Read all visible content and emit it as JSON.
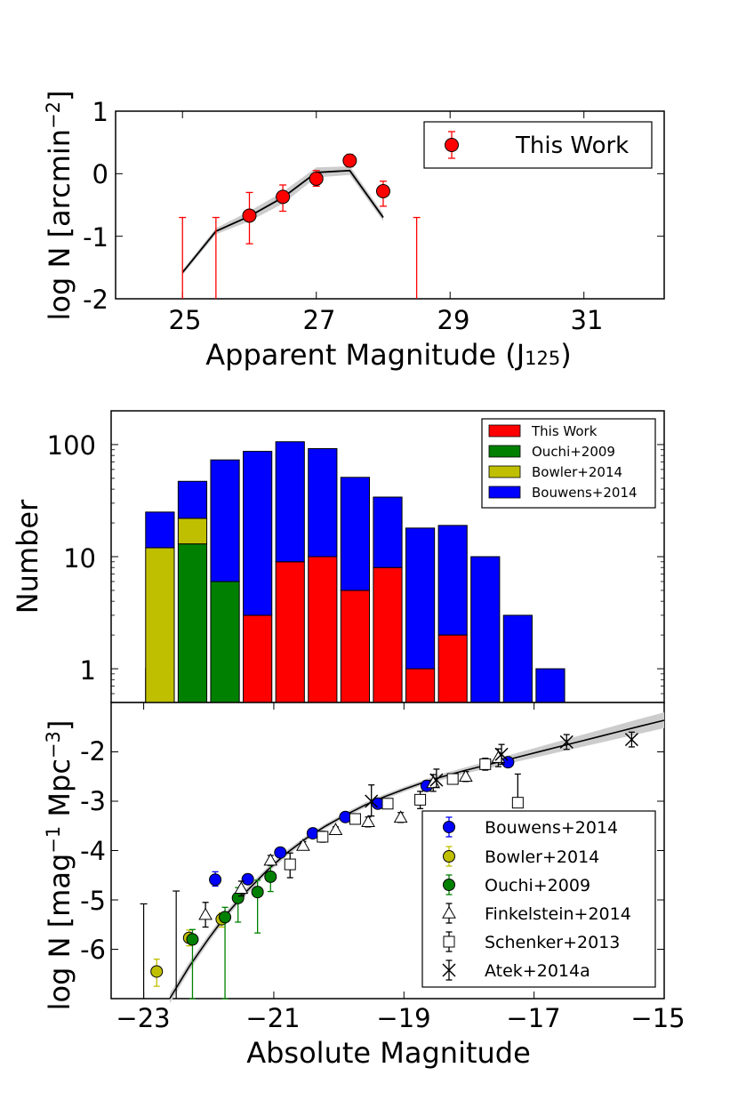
{
  "chart_data": [
    {
      "id": "panel_top",
      "type": "scatter",
      "xlabel": "Apparent Magnitude (J",
      "xlabel_sub": "125",
      "xlabel_close": ")",
      "ylabel": "log N [arcmin",
      "ylabel_sup": "−2",
      "ylabel_close": "]",
      "xlim": [
        24,
        32.2
      ],
      "ylim": [
        -2,
        1
      ],
      "xticks": [
        25,
        27,
        29,
        31
      ],
      "xtick_labels": [
        "25",
        "27",
        "29",
        "31"
      ],
      "yticks": [
        1,
        0,
        -1,
        -2
      ],
      "ytick_labels": [
        "1",
        "0",
        "-1",
        "-2"
      ],
      "legend": {
        "location": "upper right",
        "entries": [
          "This Work"
        ]
      },
      "series": [
        {
          "name": "This Work",
          "color": "#ff0000",
          "marker": "circle",
          "points": [
            {
              "x": 26.0,
              "y": -0.67,
              "ylo": -1.12,
              "yhi": -0.3
            },
            {
              "x": 26.5,
              "y": -0.37,
              "ylo": -0.6,
              "yhi": -0.18
            },
            {
              "x": 27.0,
              "y": -0.08,
              "ylo": -0.2,
              "yhi": 0.05
            },
            {
              "x": 27.5,
              "y": 0.21,
              "ylo": 0.11,
              "yhi": 0.31
            },
            {
              "x": 28.0,
              "y": -0.28,
              "ylo": -0.52,
              "yhi": -0.12
            }
          ],
          "upper_limits": [
            {
              "x": 25.0,
              "ylo": -2.0,
              "yhi": -0.7
            },
            {
              "x": 25.5,
              "ylo": -2.0,
              "yhi": -0.7
            },
            {
              "x": 28.5,
              "ylo": -2.0,
              "yhi": -0.7
            }
          ]
        },
        {
          "name": "model",
          "type": "line",
          "color": "#000000",
          "x": [
            25.0,
            25.5,
            26.0,
            26.5,
            27.0,
            27.5,
            28.0
          ],
          "y": [
            -1.58,
            -0.92,
            -0.68,
            -0.38,
            0.02,
            0.05,
            -0.7
          ],
          "band_lo": [
            -1.62,
            -0.97,
            -0.76,
            -0.48,
            -0.06,
            -0.02,
            -0.76
          ],
          "band_hi": [
            -1.54,
            -0.87,
            -0.6,
            -0.29,
            0.1,
            0.12,
            -0.64
          ]
        }
      ]
    },
    {
      "id": "panel_middle",
      "type": "bar",
      "stacked": true,
      "yscale": "log",
      "xlim": [
        -23.5,
        -15
      ],
      "ylim": [
        0.5,
        200
      ],
      "ylabel": "Number",
      "yticks": [
        1,
        10,
        100
      ],
      "ytick_labels": [
        "1",
        "10",
        "100"
      ],
      "legend": {
        "location": "upper right",
        "entries": [
          "This Work",
          "Ouchi+2009",
          "Bowler+2014",
          "Bouwens+2014"
        ]
      },
      "bars": [
        {
          "x": -22.75,
          "bottom_series": "Bowler+2014",
          "segments": [
            [
              "Ouchi+2009",
              1
            ],
            [
              "Bowler+2014",
              12
            ],
            [
              "Bouwens+2014",
              25
            ]
          ]
        },
        {
          "x": -22.25,
          "segments": [
            [
              "Ouchi+2009",
              13
            ],
            [
              "Bowler+2014",
              22
            ],
            [
              "Bouwens+2014",
              47
            ]
          ]
        },
        {
          "x": -21.75,
          "segments": [
            [
              "Ouchi+2009",
              6
            ],
            [
              "Bouwens+2014",
              73
            ]
          ]
        },
        {
          "x": -21.25,
          "segments": [
            [
              "This Work",
              3
            ],
            [
              "Bouwens+2014",
              87
            ]
          ]
        },
        {
          "x": -20.75,
          "segments": [
            [
              "This Work",
              9
            ],
            [
              "Bouwens+2014",
              106
            ]
          ]
        },
        {
          "x": -20.25,
          "segments": [
            [
              "This Work",
              10
            ],
            [
              "Bouwens+2014",
              92
            ]
          ]
        },
        {
          "x": -19.75,
          "segments": [
            [
              "This Work",
              5
            ],
            [
              "Bouwens+2014",
              51
            ]
          ]
        },
        {
          "x": -19.25,
          "segments": [
            [
              "This Work",
              8
            ],
            [
              "Bouwens+2014",
              34
            ]
          ]
        },
        {
          "x": -18.75,
          "segments": [
            [
              "This Work",
              1
            ],
            [
              "Bouwens+2014",
              18
            ]
          ]
        },
        {
          "x": -18.25,
          "segments": [
            [
              "This Work",
              2
            ],
            [
              "Bouwens+2014",
              19
            ]
          ]
        },
        {
          "x": -17.75,
          "segments": [
            [
              "Bouwens+2014",
              10
            ]
          ]
        },
        {
          "x": -17.25,
          "segments": [
            [
              "Bouwens+2014",
              3
            ]
          ]
        },
        {
          "x": -16.75,
          "segments": [
            [
              "Bouwens+2014",
              1
            ]
          ]
        }
      ],
      "colors": {
        "This Work": "#ff0000",
        "Ouchi+2009": "#008000",
        "Bowler+2014": "#bfbf00",
        "Bouwens+2014": "#0000ff"
      }
    },
    {
      "id": "panel_bottom",
      "type": "scatter",
      "xlim": [
        -23.5,
        -15
      ],
      "ylim": [
        -7,
        -1
      ],
      "xlabel": "Absolute Magnitude",
      "ylabel": "log N [mag",
      "ylabel_sup1": "−1",
      "ylabel_mid": " Mpc",
      "ylabel_sup2": "−3",
      "ylabel_close": "]",
      "xticks": [
        -23,
        -21,
        -19,
        -17,
        -15
      ],
      "xtick_labels": [
        "−23",
        "−21",
        "−19",
        "−17",
        "−15"
      ],
      "yticks": [
        -2,
        -3,
        -4,
        -5,
        -6
      ],
      "ytick_labels": [
        "-2",
        "-3",
        "-4",
        "-5",
        "-6"
      ],
      "legend": {
        "location": "lower right",
        "entries": [
          "Bouwens+2014",
          "Bowler+2014",
          "Ouchi+2009",
          "Finkelstein+2014",
          "Schenker+2013",
          "Atek+2014a"
        ]
      },
      "model": {
        "x": [
          -22.6,
          -22.3,
          -22.0,
          -21.7,
          -21.4,
          -21.1,
          -20.8,
          -20.5,
          -20.2,
          -19.9,
          -19.6,
          -19.3,
          -19.0,
          -18.7,
          -18.4,
          -18.1,
          -17.8,
          -17.5,
          -17.2,
          -16.9,
          -16.6,
          -16.3,
          -16.0,
          -15.7,
          -15.4,
          -15.0
        ],
        "y": [
          -7.0,
          -6.35,
          -5.78,
          -5.25,
          -4.8,
          -4.4,
          -4.05,
          -3.75,
          -3.5,
          -3.28,
          -3.08,
          -2.91,
          -2.76,
          -2.62,
          -2.5,
          -2.39,
          -2.29,
          -2.19,
          -2.09,
          -1.99,
          -1.89,
          -1.79,
          -1.69,
          -1.59,
          -1.49,
          -1.36
        ],
        "band_halfwidth": [
          0.1,
          0.09,
          0.08,
          0.07,
          0.07,
          0.06,
          0.06,
          0.05,
          0.05,
          0.05,
          0.05,
          0.05,
          0.05,
          0.05,
          0.06,
          0.06,
          0.07,
          0.08,
          0.09,
          0.1,
          0.11,
          0.12,
          0.13,
          0.14,
          0.15,
          0.16
        ]
      },
      "series": [
        {
          "name": "Bouwens+2014",
          "marker": "circle",
          "color": "#0000ff",
          "points": [
            {
              "x": -21.9,
              "y": -4.59,
              "ylo": -4.72,
              "yhi": -4.43
            },
            {
              "x": -21.4,
              "y": -4.58,
              "ylo": -4.66,
              "yhi": -4.5
            },
            {
              "x": -20.9,
              "y": -4.04,
              "ylo": -4.1,
              "yhi": -3.98
            },
            {
              "x": -20.4,
              "y": -3.65,
              "ylo": -3.7,
              "yhi": -3.6
            },
            {
              "x": -19.9,
              "y": -3.32,
              "ylo": -3.36,
              "yhi": -3.28
            },
            {
              "x": -19.4,
              "y": -3.05,
              "ylo": -3.09,
              "yhi": -3.01
            },
            {
              "x": -18.65,
              "y": -2.69,
              "ylo": -2.75,
              "yhi": -2.63
            },
            {
              "x": -17.4,
              "y": -2.21,
              "ylo": -2.27,
              "yhi": -2.15
            }
          ]
        },
        {
          "name": "Bowler+2014",
          "marker": "circle",
          "color": "#bfbf00",
          "points": [
            {
              "x": -22.8,
              "y": -6.45,
              "ylo": -6.75,
              "yhi": -6.2
            },
            {
              "x": -22.3,
              "y": -5.77,
              "ylo": -5.93,
              "yhi": -5.61
            },
            {
              "x": -21.8,
              "y": -5.39,
              "ylo": -5.55,
              "yhi": -5.26
            }
          ]
        },
        {
          "name": "Ouchi+2009",
          "marker": "circle",
          "color": "#008000",
          "points": [
            {
              "x": -22.25,
              "y": -5.8,
              "ylo": -7.0,
              "yhi": -5.6
            },
            {
              "x": -21.75,
              "y": -5.35,
              "ylo": -7.0,
              "yhi": -5.15
            },
            {
              "x": -21.55,
              "y": -4.96,
              "ylo": -5.45,
              "yhi": -4.75
            },
            {
              "x": -21.25,
              "y": -4.84,
              "ylo": -5.67,
              "yhi": -4.6
            },
            {
              "x": -21.05,
              "y": -4.53,
              "ylo": -4.83,
              "yhi": -4.3
            }
          ]
        },
        {
          "name": "Finkelstein+2014",
          "marker": "triangle",
          "color": "#ffffff",
          "points": [
            {
              "x": -22.05,
              "y": -5.3,
              "ylo": -5.55,
              "yhi": -5.05
            },
            {
              "x": -21.5,
              "y": -4.77,
              "ylo": -4.92,
              "yhi": -4.62
            },
            {
              "x": -21.05,
              "y": -4.2,
              "ylo": -4.3,
              "yhi": -4.1
            },
            {
              "x": -20.55,
              "y": -3.9,
              "ylo": -3.98,
              "yhi": -3.82
            },
            {
              "x": -20.05,
              "y": -3.58,
              "ylo": -3.64,
              "yhi": -3.52
            },
            {
              "x": -19.55,
              "y": -3.42,
              "ylo": -3.52,
              "yhi": -3.32
            },
            {
              "x": -19.05,
              "y": -3.33,
              "ylo": -3.43,
              "yhi": -3.23
            },
            {
              "x": -18.55,
              "y": -2.63,
              "ylo": -2.8,
              "yhi": -2.46
            },
            {
              "x": -18.05,
              "y": -2.5,
              "ylo": -2.6,
              "yhi": -2.4
            },
            {
              "x": -17.55,
              "y": -2.12,
              "ylo": -2.3,
              "yhi": -1.94
            }
          ]
        },
        {
          "name": "Schenker+2013",
          "marker": "square",
          "color": "#ffffff",
          "points": [
            {
              "x": -20.75,
              "y": -4.28,
              "ylo": -4.55,
              "yhi": -4.05
            },
            {
              "x": -20.25,
              "y": -3.72,
              "ylo": -3.83,
              "yhi": -3.61
            },
            {
              "x": -19.75,
              "y": -3.36,
              "ylo": -3.45,
              "yhi": -3.27
            },
            {
              "x": -19.25,
              "y": -3.05,
              "ylo": -3.12,
              "yhi": -2.98
            },
            {
              "x": -18.75,
              "y": -2.97,
              "ylo": -3.15,
              "yhi": -2.8
            },
            {
              "x": -18.25,
              "y": -2.55,
              "ylo": -2.65,
              "yhi": -2.45
            },
            {
              "x": -17.75,
              "y": -2.25,
              "ylo": -2.37,
              "yhi": -2.13
            },
            {
              "x": -17.25,
              "y": -3.03,
              "ylo": -3.03,
              "yhi": -2.45
            }
          ]
        },
        {
          "name": "Atek+2014a",
          "marker": "x",
          "color": "#000000",
          "points": [
            {
              "x": -19.5,
              "y": -3.0,
              "ylo": -3.3,
              "yhi": -2.67
            },
            {
              "x": -18.5,
              "y": -2.57,
              "ylo": -2.72,
              "yhi": -2.35
            },
            {
              "x": -17.5,
              "y": -2.05,
              "ylo": -2.25,
              "yhi": -1.85
            },
            {
              "x": -16.5,
              "y": -1.8,
              "ylo": -1.95,
              "yhi": -1.65
            },
            {
              "x": -15.5,
              "y": -1.75,
              "ylo": -1.9,
              "yhi": -1.6
            }
          ]
        },
        {
          "name": "limits",
          "type": "upper_limits",
          "color": "#000000",
          "points": [
            {
              "x": -23.0,
              "ylo": -7.0,
              "yhi": -5.08
            },
            {
              "x": -22.5,
              "ylo": -7.0,
              "yhi": -4.82
            }
          ]
        }
      ]
    }
  ]
}
